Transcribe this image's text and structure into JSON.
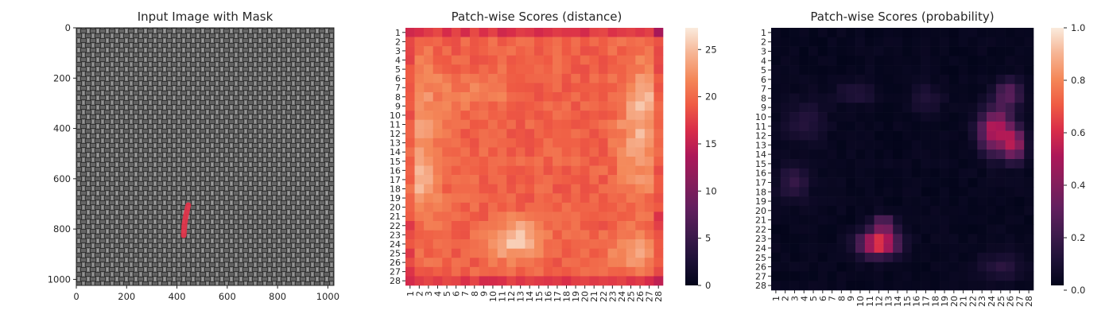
{
  "chart_data": [
    {
      "type": "image",
      "title": "Input Image with Mask",
      "xlim": [
        0,
        1024
      ],
      "ylim": [
        1024,
        0
      ],
      "xticks": [
        0,
        200,
        400,
        600,
        800,
        1000
      ],
      "yticks": [
        0,
        200,
        400,
        600,
        800,
        1000
      ],
      "mask_stroke": [
        [
          445,
          705
        ],
        [
          437,
          740
        ],
        [
          430,
          780
        ],
        [
          427,
          825
        ]
      ],
      "mask_color": "#e8334a"
    },
    {
      "type": "heatmap",
      "title": "Patch-wise Scores (distance)",
      "x_categories": [
        "1",
        "2",
        "3",
        "4",
        "5",
        "6",
        "7",
        "8",
        "9",
        "10",
        "11",
        "12",
        "13",
        "14",
        "15",
        "16",
        "17",
        "18",
        "19",
        "20",
        "21",
        "22",
        "23",
        "24",
        "25",
        "26",
        "27",
        "28"
      ],
      "y_categories": [
        "1",
        "2",
        "3",
        "4",
        "5",
        "6",
        "7",
        "8",
        "9",
        "10",
        "11",
        "12",
        "13",
        "14",
        "15",
        "16",
        "17",
        "18",
        "19",
        "20",
        "21",
        "22",
        "23",
        "24",
        "25",
        "26",
        "27",
        "28"
      ],
      "colorbar": {
        "min": 0,
        "max": 27.3,
        "ticks": [
          0,
          5,
          10,
          15,
          20,
          25
        ]
      },
      "colormap": "rocket"
    },
    {
      "type": "heatmap",
      "title": "Patch-wise Scores (probability)",
      "x_categories": [
        "1",
        "2",
        "3",
        "4",
        "5",
        "6",
        "7",
        "8",
        "9",
        "10",
        "11",
        "12",
        "13",
        "14",
        "15",
        "16",
        "17",
        "18",
        "19",
        "20",
        "21",
        "22",
        "23",
        "24",
        "25",
        "26",
        "27",
        "28"
      ],
      "y_categories": [
        "1",
        "2",
        "3",
        "4",
        "5",
        "6",
        "7",
        "8",
        "9",
        "10",
        "11",
        "12",
        "13",
        "14",
        "15",
        "16",
        "17",
        "18",
        "19",
        "20",
        "21",
        "22",
        "23",
        "24",
        "25",
        "26",
        "27",
        "28"
      ],
      "colorbar": {
        "min": 0,
        "max": 1,
        "ticks": [
          "0.0",
          "0.2",
          "0.4",
          "0.6",
          "0.8",
          "1.0"
        ]
      },
      "colormap": "rocket"
    }
  ]
}
